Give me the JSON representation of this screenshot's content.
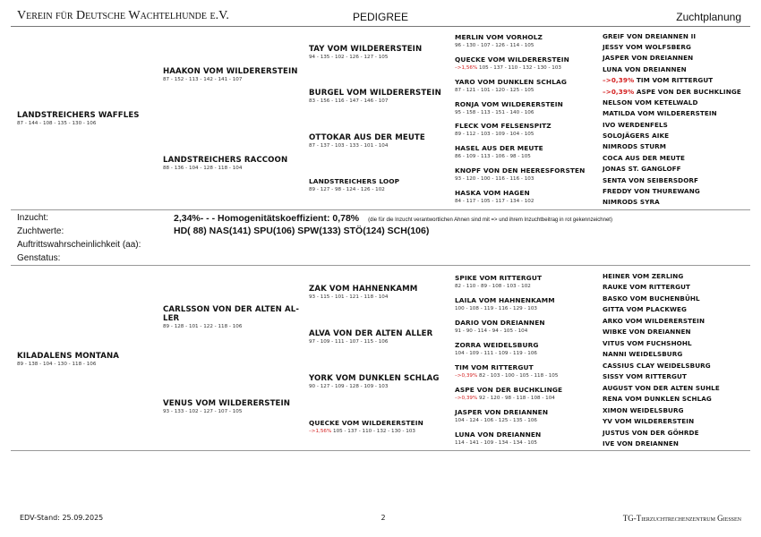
{
  "header": {
    "left": "Verein für Deutsche Wachtelhunde e.V.",
    "center": "PEDIGREE",
    "right": "Zuchtplanung"
  },
  "pedigrees": [
    {
      "dog": {
        "name": "LANDSTREICHERS WAFFLES",
        "values": "87 - 144 - 108 - 135 - 130 - 106"
      },
      "parents": [
        {
          "name": "HAAKON VOM WILDERERSTEIN",
          "values": "87 - 152 - 113 - 142 - 141 - 107"
        },
        {
          "name": "LANDSTREICHERS RACCOON",
          "values": "88 - 136 - 104 - 128 - 118 - 104"
        }
      ],
      "grandparents": [
        {
          "name": "TAY VOM WILDERERSTEIN",
          "values": "94 - 135 - 102 - 126 - 127 - 105"
        },
        {
          "name": "BURGEL VOM WILDERERSTEIN",
          "values": "83 - 156 - 116 - 147 - 146 - 107"
        },
        {
          "name": "OTTOKAR AUS DER MEUTE",
          "values": "87 - 137 - 103 - 133 - 101 - 104"
        },
        {
          "name": "LANDSTREICHERS LOOP",
          "values": "89 - 127 - 98 - 124 - 126 - 102"
        }
      ],
      "great_grandparents": [
        {
          "name": "MERLIN VOM VORHOLZ",
          "values": "96 - 130 - 107 - 126 - 114 - 105"
        },
        {
          "name": "QUECKE VOM WILDERERSTEIN",
          "inbreeding": "–>1,56%",
          "values": "105 - 137 - 110 - 132 - 130 - 103"
        },
        {
          "name": "YARO VOM DUNKLEN SCHLAG",
          "values": "87 - 121 - 101 - 120 - 125 - 105"
        },
        {
          "name": "RONJA VOM WILDERERSTEIN",
          "values": "95 - 158 - 113 - 151 - 140 - 106"
        },
        {
          "name": "FLECK VOM FELSENSPITZ",
          "values": "89 - 112 - 103 - 109 - 104 - 105"
        },
        {
          "name": "HASEL AUS DER MEUTE",
          "values": "86 - 109 - 113 - 106 - 98 - 105"
        },
        {
          "name": "KNOPF VON DEN HEERESFORSTEN",
          "values": "93 - 120 - 100 - 116 - 116 - 103"
        },
        {
          "name": "HASKA VOM HAGEN",
          "values": "84 - 117 - 105 - 117 - 134 - 102"
        }
      ],
      "great_great_grandparents": [
        {
          "name": "GREIF VON DREIANNEN II"
        },
        {
          "name": "JESSY VOM WOLFSBERG"
        },
        {
          "name": "JASPER VON DREIANNEN"
        },
        {
          "name": "LUNA VON DREIANNEN"
        },
        {
          "name": "TIM VOM RITTERGUT",
          "inbreeding": "–>0,39%"
        },
        {
          "name": "ASPE VON DER BUCHKLINGE",
          "inbreeding": "–>0,39%"
        },
        {
          "name": "NELSON VOM KETELWALD"
        },
        {
          "name": "MATILDA VOM WILDERERSTEIN"
        },
        {
          "name": "IVO WERDENFELS"
        },
        {
          "name": "SOLOJÄGERS AIKE"
        },
        {
          "name": "NIMRODS STURM"
        },
        {
          "name": "COCA AUS DER MEUTE"
        },
        {
          "name": "JONAS ST. GANGLOFF"
        },
        {
          "name": "SENTA VON SEIBERSDORF"
        },
        {
          "name": "FREDDY VON THUREWANG"
        },
        {
          "name": "NIMRODS SYRA"
        }
      ]
    },
    {
      "dog": {
        "name": "KILADALENS MONTANA",
        "values": "89 - 138 - 104 - 130 - 118 - 106"
      },
      "parents": [
        {
          "name": "CARLSSON VON DER ALTEN AL-\nLER",
          "values": "89 - 128 - 101 - 122 - 118 - 106"
        },
        {
          "name": "VENUS VOM WILDERERSTEIN",
          "values": "93 - 133 - 102 - 127 - 107 - 105"
        }
      ],
      "grandparents": [
        {
          "name": "ZAK VOM HAHNENKAMM",
          "values": "93 - 115 - 101 - 121 - 118 - 104"
        },
        {
          "name": "ALVA VON DER ALTEN ALLER",
          "values": "97 - 109 - 111 - 107 - 115 - 106"
        },
        {
          "name": "YORK VOM DUNKLEN SCHLAG",
          "values": "90 - 127 - 109 - 128 - 109 - 103"
        },
        {
          "name": "QUECKE VOM WILDERERSTEIN",
          "inbreeding": "–>1,56%",
          "values": "105 - 137 - 110 - 132 - 130 - 103"
        }
      ],
      "great_grandparents": [
        {
          "name": "SPIKE VOM RITTERGUT",
          "values": "82 - 110 - 89 - 108 - 103 - 102"
        },
        {
          "name": "LAILA VOM HAHNENKAMM",
          "values": "100 - 108 - 119 - 116 - 129 - 103"
        },
        {
          "name": "DARIO VON DREIANNEN",
          "values": "91 - 90 - 114 - 94 - 105 - 104"
        },
        {
          "name": "ZORRA WEIDELSBURG",
          "values": "104 - 109 - 111 - 109 - 119 - 106"
        },
        {
          "name": "TIM VOM RITTERGUT",
          "inbreeding": "–>0,39%",
          "values": "82 - 103 - 100 - 105 - 118 - 105"
        },
        {
          "name": "ASPE VON DER BUCHKLINGE",
          "inbreeding": "–>0,39%",
          "values": "92 - 120 - 98 - 118 - 108 - 104"
        },
        {
          "name": "JASPER VON DREIANNEN",
          "values": "104 - 124 - 106 - 125 - 135 - 106"
        },
        {
          "name": "LUNA VON DREIANNEN",
          "values": "114 - 141 - 109 - 134 - 134 - 105"
        }
      ],
      "great_great_grandparents": [
        {
          "name": "HEINER VOM ZERLING"
        },
        {
          "name": "RAUKE VOM RITTERGUT"
        },
        {
          "name": "BASKO VOM BUCHENBÜHL"
        },
        {
          "name": "GITTA VOM PLACKWEG"
        },
        {
          "name": "ARKO VOM WILDERERSTEIN"
        },
        {
          "name": "WIBKE VON DREIANNEN"
        },
        {
          "name": "VITUS VOM FUCHSHOHL"
        },
        {
          "name": "NANNI WEIDELSBURG"
        },
        {
          "name": "CASSIUS CLAY WEIDELSBURG"
        },
        {
          "name": "SISSY VOM RITTERGUT"
        },
        {
          "name": "AUGUST VON DER ALTEN SUHLE"
        },
        {
          "name": "RENA VOM DUNKLEN SCHLAG"
        },
        {
          "name": "XIMON WEIDELSBURG"
        },
        {
          "name": "YV VOM WILDERERSTEIN"
        },
        {
          "name": "JUSTUS VON DER GÖHRDE"
        },
        {
          "name": "IVE VON DREIANNEN"
        }
      ]
    }
  ],
  "info": {
    "inzucht_label": "Inzucht:",
    "inzucht_value": "2,34%- - - Homogenitätskoeffizient: 0,78%",
    "inzucht_note": "(die für die Inzucht verantwortlichen Ahnen sind mit => und ihrem Inzuchtbeitrag in rot gekennzeichnet)",
    "zuchtwerte_label": "Zuchtwerte:",
    "zuchtwerte_value": "HD( 88) NAS(141) SPU(106) SPW(133) STÖ(124) SCH(106)",
    "aa_label": "Auftrittswahrscheinlichkeit (aa):",
    "genstatus_label": "Genstatus:"
  },
  "footer": {
    "left": "EDV-Stand: 25.09.2025",
    "center": "2",
    "right": "TG-Tierzuchtrechenzentrum Giessen"
  },
  "colors": {
    "inbreeding": "#d42020",
    "rule": "#999999"
  }
}
